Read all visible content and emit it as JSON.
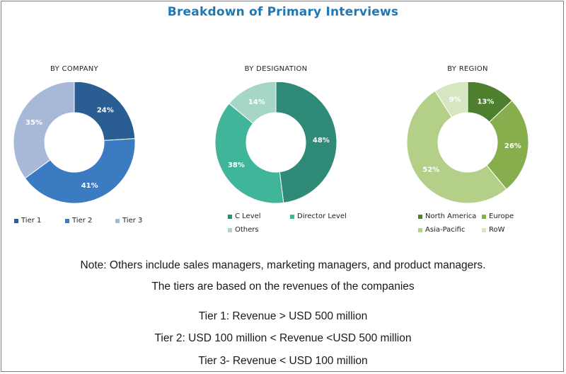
{
  "title": "Breakdown of Primary Interviews",
  "chart_data": [
    {
      "type": "pie",
      "title": "BY COMPANY",
      "categories": [
        "Tier 1",
        "Tier 2",
        "Tier 3"
      ],
      "values": [
        24,
        41,
        35
      ],
      "labels": [
        "24%",
        "41%",
        "35%"
      ],
      "colors": [
        "#2a5d91",
        "#3a7bc2",
        "#a8b8d8"
      ],
      "legend": "bottom"
    },
    {
      "type": "pie",
      "title": "BY DESIGNATION",
      "categories": [
        "C Level",
        "Director Level",
        "Others"
      ],
      "values": [
        48,
        38,
        14
      ],
      "labels": [
        "48%",
        "38%",
        "14%"
      ],
      "colors": [
        "#2f8a77",
        "#41b59a",
        "#a6d6c8"
      ],
      "legend": "bottom"
    },
    {
      "type": "pie",
      "title": "BY REGION",
      "categories": [
        "North America",
        "Europe",
        "Asia-Pacific",
        "RoW"
      ],
      "values": [
        13,
        26,
        52,
        9
      ],
      "labels": [
        "13%",
        "26%",
        "52%",
        "9%"
      ],
      "colors": [
        "#4e7f2f",
        "#86ae4c",
        "#b4d088",
        "#d6e6c0"
      ],
      "legend": "bottom"
    }
  ],
  "notes": [
    "Note: Others include sales managers, marketing managers, and product managers.",
    "The tiers are based on the revenues of the companies",
    "Tier 1: Revenue > USD 500 million",
    "Tier 2: USD 100 million < Revenue <USD 500 million",
    "Tier 3- Revenue < USD 100 million"
  ]
}
